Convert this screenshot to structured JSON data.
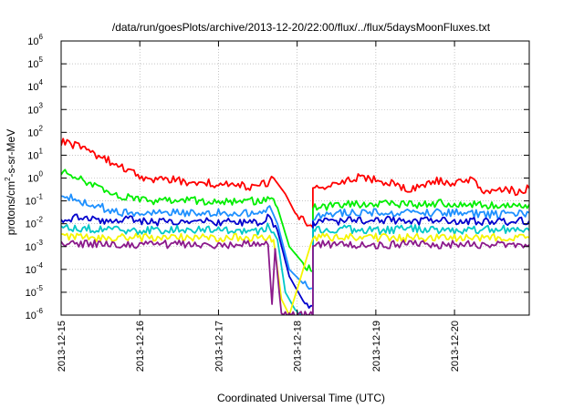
{
  "chart_data": {
    "type": "line",
    "title": "/data/run/goesPlots/archive/2013-12-20/22:00/flux/../flux/5daysMoonFluxes.txt",
    "xlabel": "Coordinated Universal Time (UTC)",
    "ylabel_parts": {
      "base": "protons/cm",
      "exp": "2",
      "rest": "-s-sr-MeV"
    },
    "y_scale": "log",
    "ylim": [
      1e-06,
      1000000.0
    ],
    "y_ticks": [
      {
        "v": 1000000.0,
        "base": "10",
        "exp": "6"
      },
      {
        "v": 100000.0,
        "base": "10",
        "exp": "5"
      },
      {
        "v": 10000.0,
        "base": "10",
        "exp": "4"
      },
      {
        "v": 1000.0,
        "base": "10",
        "exp": "3"
      },
      {
        "v": 100.0,
        "base": "10",
        "exp": "2"
      },
      {
        "v": 10.0,
        "base": "10",
        "exp": "1"
      },
      {
        "v": 1.0,
        "base": "10",
        "exp": "0"
      },
      {
        "v": 0.1,
        "base": "10",
        "exp": "-1"
      },
      {
        "v": 0.01,
        "base": "10",
        "exp": "-2"
      },
      {
        "v": 0.001,
        "base": "10",
        "exp": "-3"
      },
      {
        "v": 0.0001,
        "base": "10",
        "exp": "-4"
      },
      {
        "v": 1e-05,
        "base": "10",
        "exp": "-5"
      },
      {
        "v": 1e-06,
        "base": "10",
        "exp": "-6"
      }
    ],
    "x_range_days": [
      0,
      5.95
    ],
    "x_ticks": [
      {
        "day": 0,
        "label": "2013-12-15"
      },
      {
        "day": 1,
        "label": "2013-12-16"
      },
      {
        "day": 2,
        "label": "2013-12-17"
      },
      {
        "day": 3,
        "label": "2013-12-18"
      },
      {
        "day": 4,
        "label": "2013-12-19"
      },
      {
        "day": 5,
        "label": "2013-12-20"
      }
    ],
    "grid": true,
    "series": [
      {
        "color": "#ff0000",
        "points": [
          [
            0,
            40
          ],
          [
            0.2,
            25
          ],
          [
            0.4,
            12
          ],
          [
            0.6,
            6
          ],
          [
            0.8,
            2.5
          ],
          [
            1.0,
            1.2
          ],
          [
            1.2,
            0.8
          ],
          [
            1.4,
            0.9
          ],
          [
            1.6,
            0.6
          ],
          [
            1.8,
            0.7
          ],
          [
            2.0,
            0.5
          ],
          [
            2.2,
            0.6
          ],
          [
            2.4,
            0.4
          ],
          [
            2.6,
            0.55
          ],
          [
            2.7,
            1.0
          ],
          [
            2.85,
            0.2
          ],
          [
            3.0,
            0.02
          ],
          [
            3.2,
            0.007
          ],
          [
            3.2,
            0.3
          ],
          [
            3.5,
            0.5
          ],
          [
            3.8,
            1.2
          ],
          [
            4.0,
            0.8
          ],
          [
            4.2,
            0.6
          ],
          [
            4.4,
            0.3
          ],
          [
            4.6,
            0.4
          ],
          [
            4.8,
            0.8
          ],
          [
            5.0,
            0.5
          ],
          [
            5.2,
            1.0
          ],
          [
            5.4,
            0.25
          ],
          [
            5.6,
            0.35
          ],
          [
            5.8,
            0.25
          ],
          [
            5.95,
            0.35
          ]
        ]
      },
      {
        "color": "#00ee00",
        "points": [
          [
            0,
            2.0
          ],
          [
            0.2,
            1.0
          ],
          [
            0.4,
            0.6
          ],
          [
            0.6,
            0.3
          ],
          [
            0.8,
            0.15
          ],
          [
            1.0,
            0.1
          ],
          [
            1.5,
            0.1
          ],
          [
            2.0,
            0.1
          ],
          [
            2.5,
            0.1
          ],
          [
            2.65,
            0.15
          ],
          [
            2.75,
            0.05
          ],
          [
            2.9,
            0.001
          ],
          [
            3.1,
            0.00015
          ],
          [
            3.2,
            8e-05
          ],
          [
            3.2,
            0.05
          ],
          [
            3.6,
            0.07
          ],
          [
            4.0,
            0.08
          ],
          [
            4.5,
            0.07
          ],
          [
            5.0,
            0.08
          ],
          [
            5.5,
            0.06
          ],
          [
            5.95,
            0.07
          ]
        ]
      },
      {
        "color": "#1e90ff",
        "points": [
          [
            0,
            0.2
          ],
          [
            0.2,
            0.1
          ],
          [
            0.4,
            0.08
          ],
          [
            0.6,
            0.04
          ],
          [
            0.8,
            0.03
          ],
          [
            1.0,
            0.03
          ],
          [
            1.5,
            0.03
          ],
          [
            2.0,
            0.03
          ],
          [
            2.5,
            0.03
          ],
          [
            2.65,
            0.06
          ],
          [
            2.75,
            0.01
          ],
          [
            2.9,
            0.0001
          ],
          [
            3.1,
            2e-05
          ],
          [
            3.2,
            1.5e-05
          ],
          [
            3.2,
            0.02
          ],
          [
            3.6,
            0.03
          ],
          [
            4.0,
            0.03
          ],
          [
            4.5,
            0.03
          ],
          [
            5.0,
            0.03
          ],
          [
            5.5,
            0.025
          ],
          [
            5.95,
            0.03
          ]
        ]
      },
      {
        "color": "#0000cd",
        "points": [
          [
            0,
            0.015
          ],
          [
            0.3,
            0.02
          ],
          [
            0.6,
            0.012
          ],
          [
            0.9,
            0.015
          ],
          [
            1.2,
            0.012
          ],
          [
            1.5,
            0.013
          ],
          [
            2.0,
            0.012
          ],
          [
            2.5,
            0.012
          ],
          [
            2.65,
            0.02
          ],
          [
            2.75,
            0.005
          ],
          [
            2.9,
            5e-05
          ],
          [
            3.1,
            3e-06
          ],
          [
            3.2,
            2.5e-06
          ],
          [
            3.2,
            0.012
          ],
          [
            3.6,
            0.013
          ],
          [
            4.0,
            0.015
          ],
          [
            4.5,
            0.013
          ],
          [
            5.0,
            0.014
          ],
          [
            5.5,
            0.012
          ],
          [
            5.95,
            0.013
          ]
        ]
      },
      {
        "color": "#00c8c8",
        "points": [
          [
            0,
            0.006
          ],
          [
            0.5,
            0.006
          ],
          [
            1.0,
            0.005
          ],
          [
            1.5,
            0.006
          ],
          [
            2.0,
            0.005
          ],
          [
            2.5,
            0.005
          ],
          [
            2.65,
            0.008
          ],
          [
            2.75,
            0.002
          ],
          [
            2.85,
            1e-05
          ],
          [
            3.0,
            1.2e-06
          ],
          [
            3.2,
            1e-06
          ],
          [
            3.2,
            0.005
          ],
          [
            3.6,
            0.006
          ],
          [
            4.0,
            0.005
          ],
          [
            4.5,
            0.006
          ],
          [
            5.0,
            0.005
          ],
          [
            5.5,
            0.006
          ],
          [
            5.95,
            0.005
          ]
        ]
      },
      {
        "color": "#f5f500",
        "points": [
          [
            0,
            0.0025
          ],
          [
            1.0,
            0.0025
          ],
          [
            2.0,
            0.0025
          ],
          [
            2.6,
            0.0025
          ],
          [
            2.7,
            0.002
          ],
          [
            2.8,
            5e-06
          ],
          [
            2.9,
            1e-06
          ],
          [
            3.2,
            0.0025
          ],
          [
            4.0,
            0.0025
          ],
          [
            5.0,
            0.0025
          ],
          [
            5.95,
            0.0025
          ]
        ]
      },
      {
        "color": "#8b1a8b",
        "points": [
          [
            0,
            0.0012
          ],
          [
            0.5,
            0.0013
          ],
          [
            1.0,
            0.0012
          ],
          [
            1.5,
            0.0013
          ],
          [
            2.0,
            0.0012
          ],
          [
            2.5,
            0.0013
          ],
          [
            2.63,
            0.0012
          ],
          [
            2.68,
            3e-06
          ],
          [
            2.72,
            0.0008
          ],
          [
            2.8,
            1e-06
          ],
          [
            3.2,
            1e-06
          ],
          [
            3.2,
            0.0012
          ],
          [
            3.6,
            0.0013
          ],
          [
            4.0,
            0.0012
          ],
          [
            4.5,
            0.0013
          ],
          [
            5.0,
            0.0012
          ],
          [
            5.5,
            0.0013
          ],
          [
            5.95,
            0.0012
          ]
        ]
      }
    ]
  }
}
